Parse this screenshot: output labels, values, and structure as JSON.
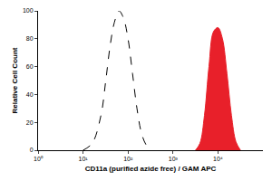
{
  "chart_data": {
    "type": "line",
    "xlabel": "CD11a (purified azide free) / GAM APC",
    "ylabel": "Relative Cell Count",
    "log": "x",
    "grid": false,
    "xlim": [
      1,
      100000
    ],
    "xticks": [
      {
        "value": 1,
        "label": "10⁰"
      },
      {
        "value": 10,
        "label": "10¹"
      },
      {
        "value": 100,
        "label": "10²"
      },
      {
        "value": 1000,
        "label": "10³"
      },
      {
        "value": 10000,
        "label": "10⁴"
      }
    ],
    "ylim": [
      0,
      100
    ],
    "yticks": [
      0,
      20,
      40,
      60,
      80,
      100
    ],
    "series": [
      {
        "color": "#000000",
        "line_style": "dashed",
        "x": [
          10,
          16,
          25,
          32,
          40,
          50,
          63,
          79,
          100,
          126,
          158,
          200,
          251,
          316
        ],
        "values": [
          0,
          5,
          25,
          50,
          75,
          92,
          100,
          95,
          80,
          55,
          30,
          12,
          4,
          0
        ]
      },
      {
        "color": "#e8202a",
        "type": "area",
        "line_style": "solid",
        "x": [
          3162,
          3981,
          5012,
          6310,
          7943,
          10000,
          12589,
          15849,
          19953,
          25119,
          31623
        ],
        "values": [
          0,
          5,
          25,
          60,
          85,
          88,
          80,
          55,
          25,
          6,
          0
        ]
      }
    ]
  }
}
